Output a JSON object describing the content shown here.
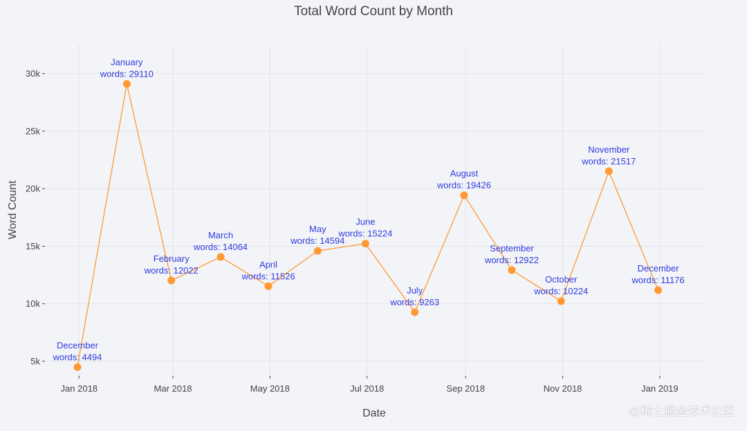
{
  "page": {
    "watermark": "@稀土掘金技术社区"
  },
  "chart_data": {
    "type": "line",
    "title": "Total Word Count by Month",
    "xlabel": "Date",
    "ylabel": "Word Count",
    "x_ticks": [
      {
        "date": "2018-01-01",
        "label": "Jan 2018"
      },
      {
        "date": "2018-03-01",
        "label": "Mar 2018"
      },
      {
        "date": "2018-05-01",
        "label": "May 2018"
      },
      {
        "date": "2018-07-01",
        "label": "Jul 2018"
      },
      {
        "date": "2018-09-01",
        "label": "Sep 2018"
      },
      {
        "date": "2018-11-01",
        "label": "Nov 2018"
      },
      {
        "date": "2019-01-01",
        "label": "Jan 2019"
      }
    ],
    "y_ticks": [
      {
        "value": 5000,
        "label": "5k"
      },
      {
        "value": 10000,
        "label": "10k"
      },
      {
        "value": 15000,
        "label": "15k"
      },
      {
        "value": 20000,
        "label": "20k"
      },
      {
        "value": 25000,
        "label": "25k"
      },
      {
        "value": 30000,
        "label": "30k"
      }
    ],
    "ylim": [
      3800,
      32500
    ],
    "xlim": [
      "2017-12-11",
      "2019-01-28"
    ],
    "grid": true,
    "color": "#ff9933",
    "label_color": "#2f3bdc",
    "points": [
      {
        "date": "2017-12-31",
        "value": 4494,
        "month": "December",
        "label": "words: 4494"
      },
      {
        "date": "2018-01-31",
        "value": 29110,
        "month": "January",
        "label": "words: 29110"
      },
      {
        "date": "2018-02-28",
        "value": 12022,
        "month": "February",
        "label": "words: 12022"
      },
      {
        "date": "2018-03-31",
        "value": 14064,
        "month": "March",
        "label": "words: 14064"
      },
      {
        "date": "2018-04-30",
        "value": 11526,
        "month": "April",
        "label": "words: 11526"
      },
      {
        "date": "2018-05-31",
        "value": 14594,
        "month": "May",
        "label": "words: 14594"
      },
      {
        "date": "2018-06-30",
        "value": 15224,
        "month": "June",
        "label": "words: 15224"
      },
      {
        "date": "2018-07-31",
        "value": 9263,
        "month": "July",
        "label": "words: 9263"
      },
      {
        "date": "2018-08-31",
        "value": 19426,
        "month": "August",
        "label": "words: 19426"
      },
      {
        "date": "2018-09-30",
        "value": 12922,
        "month": "September",
        "label": "words: 12922"
      },
      {
        "date": "2018-10-31",
        "value": 10224,
        "month": "October",
        "label": "words: 10224"
      },
      {
        "date": "2018-11-30",
        "value": 21517,
        "month": "November",
        "label": "words: 21517"
      },
      {
        "date": "2018-12-31",
        "value": 11176,
        "month": "December",
        "label": "words: 11176"
      }
    ]
  }
}
